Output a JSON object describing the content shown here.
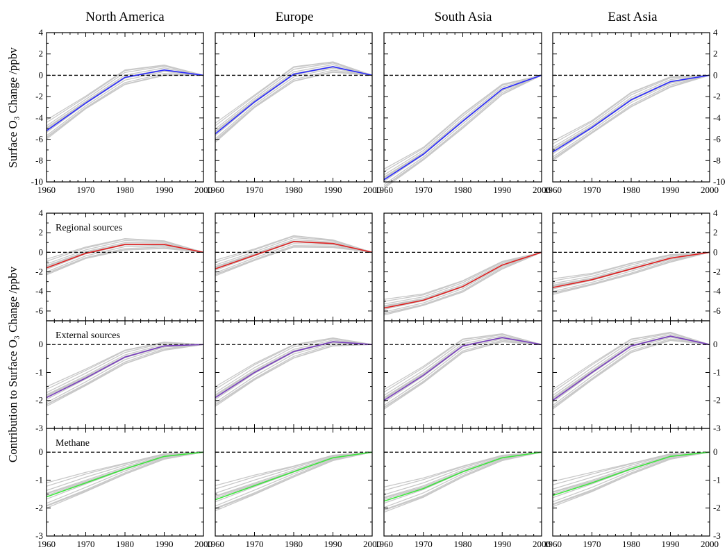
{
  "figure": {
    "regions": [
      "North America",
      "Europe",
      "South Asia",
      "East Asia"
    ],
    "top_ylabel": "Surface O₃ Change /ppbv",
    "bottom_ylabel": "Contribution to Surface O₃ Change /ppbv",
    "row_labels": [
      "",
      "Regional sources",
      "External sources",
      "Methane"
    ]
  },
  "chart_data": {
    "type": "line",
    "x": [
      1960,
      1970,
      1980,
      1990,
      2000
    ],
    "xlim": [
      1960,
      2000
    ],
    "xticks": [
      1960,
      1970,
      1980,
      1990,
      2000
    ],
    "grid": false,
    "legend": "none",
    "colors": {
      "total": "#2a2aff",
      "regional": "#e02020",
      "external": "#7a3fbf",
      "methane": "#3ce63c",
      "model": "#c8c8c8",
      "zero": "#000000"
    },
    "rows": [
      {
        "key": "total",
        "label": "",
        "ylim": [
          -10,
          4
        ],
        "yticks": [
          -10,
          -8,
          -6,
          -4,
          -2,
          0,
          2,
          4
        ],
        "mean": [
          [
            -5.2,
            -2.6,
            -0.2,
            0.5,
            0.0
          ],
          [
            -5.5,
            -2.5,
            0.1,
            0.8,
            0.0
          ],
          [
            -9.8,
            -7.4,
            -4.3,
            -1.3,
            0.0
          ],
          [
            -7.2,
            -4.9,
            -2.3,
            -0.6,
            0.0
          ]
        ],
        "spread": [
          0.9,
          0.6,
          0.7,
          0.5,
          0.0
        ]
      },
      {
        "key": "regional",
        "label": "Regional sources",
        "ylim": [
          -7,
          4
        ],
        "yticks": [
          -6,
          -4,
          -2,
          0,
          2,
          4
        ],
        "mean": [
          [
            -1.6,
            -0.1,
            0.8,
            0.8,
            0.0
          ],
          [
            -1.7,
            -0.3,
            1.1,
            0.9,
            0.0
          ],
          [
            -5.7,
            -4.9,
            -3.5,
            -1.3,
            0.0
          ],
          [
            -3.6,
            -2.8,
            -1.7,
            -0.6,
            0.0
          ]
        ],
        "spread": [
          0.8,
          0.6,
          0.6,
          0.4,
          0.0
        ]
      },
      {
        "key": "external",
        "label": "External sources",
        "ylim": [
          -3,
          0.85
        ],
        "yticks": [
          -3,
          -2,
          -1,
          0
        ],
        "mean": [
          [
            -1.9,
            -1.2,
            -0.45,
            -0.05,
            0.0
          ],
          [
            -1.9,
            -1.0,
            -0.25,
            0.1,
            0.0
          ],
          [
            -2.0,
            -1.1,
            -0.05,
            0.25,
            0.0
          ],
          [
            -2.0,
            -1.0,
            -0.05,
            0.3,
            0.0
          ]
        ],
        "spread": [
          0.35,
          0.3,
          0.25,
          0.15,
          0.0
        ]
      },
      {
        "key": "methane",
        "label": "Methane",
        "ylim": [
          -3,
          0.85
        ],
        "yticks": [
          -3,
          -2,
          -1,
          0
        ],
        "mean": [
          [
            -1.6,
            -1.1,
            -0.6,
            -0.15,
            0.0
          ],
          [
            -1.7,
            -1.2,
            -0.7,
            -0.2,
            0.0
          ],
          [
            -1.75,
            -1.3,
            -0.7,
            -0.2,
            0.0
          ],
          [
            -1.55,
            -1.1,
            -0.6,
            -0.15,
            0.0
          ]
        ],
        "spread": [
          0.45,
          0.35,
          0.2,
          0.1,
          0.0
        ]
      }
    ]
  }
}
